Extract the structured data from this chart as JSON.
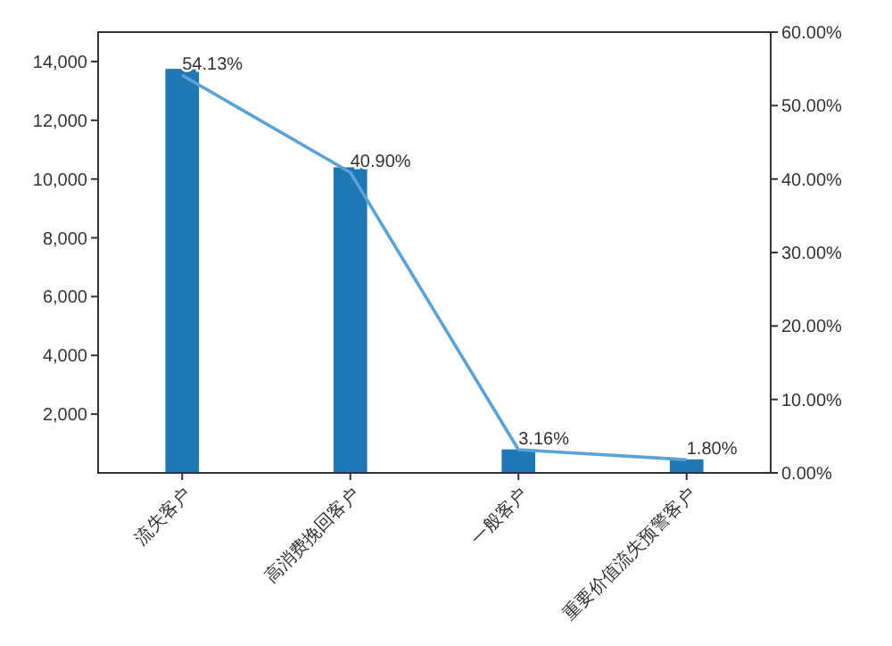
{
  "chart_data": {
    "type": "bar",
    "categories": [
      "流失客户",
      "高消费挽回客户",
      "一般客户",
      "重要价值流失预警客户"
    ],
    "series": [
      {
        "color": "#1f77b4",
        "values": [
          13750,
          10400,
          800,
          460
        ]
      },
      {
        "type": "line",
        "axis": "y2",
        "color": "#5aa3d6",
        "values": [
          54.13,
          40.9,
          3.16,
          1.8
        ],
        "value_labels": [
          "54.13%",
          "40.90%",
          "3.16%",
          "1.80%"
        ]
      }
    ],
    "ylim": [
      0,
      15000
    ],
    "yticks": [
      {
        "value": 2000,
        "label": "2,000"
      },
      {
        "value": 4000,
        "label": "4,000"
      },
      {
        "value": 6000,
        "label": "6,000"
      },
      {
        "value": 8000,
        "label": "8,000"
      },
      {
        "value": 10000,
        "label": "10,000"
      },
      {
        "value": 12000,
        "label": "12,000"
      },
      {
        "value": 14000,
        "label": "14,000"
      }
    ],
    "y2lim": [
      0,
      60
    ],
    "y2ticks": [
      {
        "value": 0,
        "label": "0.00%"
      },
      {
        "value": 10,
        "label": "10.00%"
      },
      {
        "value": 20,
        "label": "20.00%"
      },
      {
        "value": 30,
        "label": "30.00%"
      },
      {
        "value": 40,
        "label": "40.00%"
      },
      {
        "value": 50,
        "label": "50.00%"
      },
      {
        "value": 60,
        "label": "60.00%"
      }
    ],
    "grid": false,
    "marker": "none",
    "line_style": "solid"
  }
}
